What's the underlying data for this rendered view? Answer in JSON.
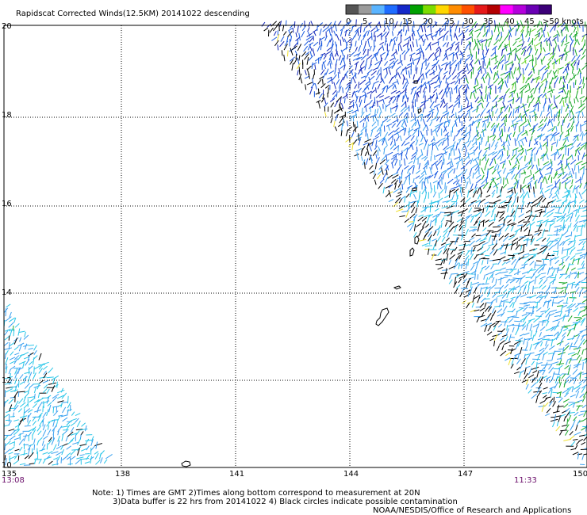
{
  "title": "Rapidscat Corrected Winds(12.5KM) 20141022 descending",
  "legend": {
    "labels": [
      "0",
      "5",
      "10",
      "15",
      "20",
      "25",
      "30",
      "35",
      "40",
      "45",
      ">50 knots"
    ],
    "colors": [
      "#555555",
      "#9b9b9b",
      "#5ab4ff",
      "#1e6cff",
      "#1428c8",
      "#00a000",
      "#7cdc00",
      "#ffd700",
      "#ff8c00",
      "#ff5000",
      "#e61919",
      "#b40000",
      "#ff00ff",
      "#b400dc",
      "#6a00b4",
      "#3c0078"
    ]
  },
  "y_labels": [
    "20",
    "18",
    "16",
    "14",
    "12",
    "10"
  ],
  "x_labels": [
    "135",
    "138",
    "141",
    "144",
    "147",
    "150"
  ],
  "time_left": "13:08",
  "time_right": "11:33",
  "notes": {
    "line1": "Note: 1) Times are GMT 2)Times along bottom correspond to measurement at 20N",
    "line2": "3)Data buffer is 22 hrs from 20141022 4) Black circles indicate possible contamination",
    "line3": "NOAA/NESDIS/Office of Research and Applications"
  },
  "swath_colors": {
    "cyan": "#29c6e8",
    "light_blue": "#3aa0f0",
    "blue": "#1a5ae0",
    "dark_blue": "#1226b8",
    "green": "#1aa82a",
    "light_green": "#6cd62a",
    "yellow": "#f0e030",
    "black": "#000000"
  }
}
